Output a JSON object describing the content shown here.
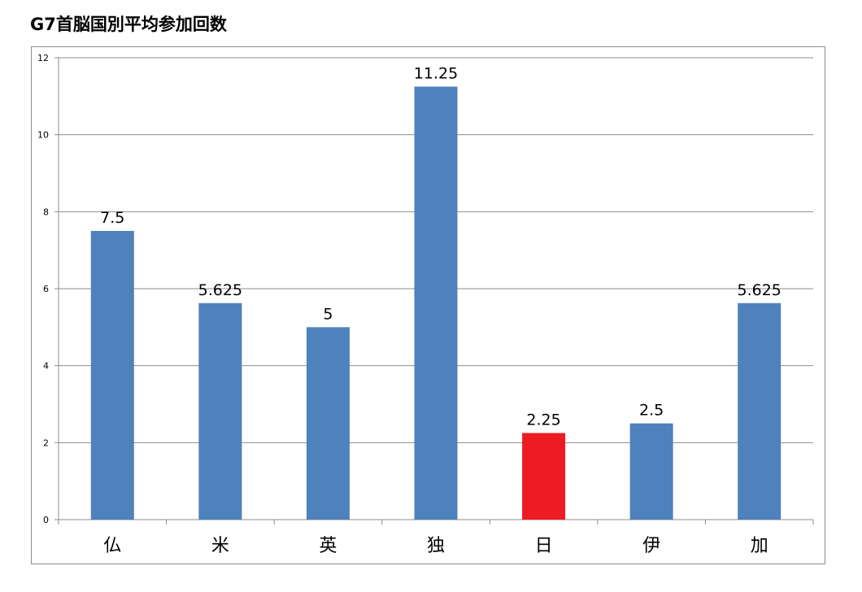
{
  "chart_data": {
    "type": "bar",
    "title": "G7首脳国別平均参加回数",
    "categories": [
      "仏",
      "米",
      "英",
      "独",
      "日",
      "伊",
      "加"
    ],
    "values": [
      7.5,
      5.625,
      5,
      11.25,
      2.25,
      2.5,
      5.625
    ],
    "data_labels": [
      "7.5",
      "5.625",
      "5",
      "11.25",
      "2.25",
      "2.5",
      "5.625"
    ],
    "ylim": [
      0,
      12
    ],
    "yticks": [
      "0",
      "2",
      "4",
      "6",
      "8",
      "10",
      "12"
    ],
    "grid": true,
    "legend": "none",
    "colors": {
      "default_bar": "#4f81bd",
      "highlight_bar": "#ed1c24",
      "highlight_category": "日",
      "gridline": "#8c8c8c"
    }
  }
}
